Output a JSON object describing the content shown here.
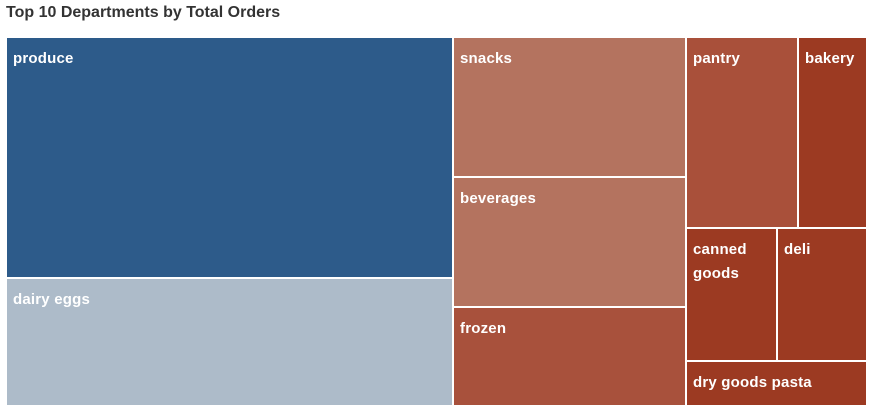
{
  "chart_data": {
    "type": "treemap",
    "title": "Top 10  Departments by Total Orders",
    "items": [
      {
        "name": "produce",
        "label": "produce",
        "color": "#2d5b8a"
      },
      {
        "name": "dairy eggs",
        "label": "dairy eggs",
        "color": "#adbbc9"
      },
      {
        "name": "snacks",
        "label": "snacks",
        "color": "#b4735f"
      },
      {
        "name": "beverages",
        "label": "beverages",
        "color": "#b4735f"
      },
      {
        "name": "frozen",
        "label": "frozen",
        "color": "#a8513c"
      },
      {
        "name": "pantry",
        "label": "pantry",
        "color": "#a9503a"
      },
      {
        "name": "bakery",
        "label": "bakery",
        "color": "#9c3a22"
      },
      {
        "name": "canned goods",
        "label": "canned\ngoods",
        "color": "#9c3a22"
      },
      {
        "name": "deli",
        "label": "deli",
        "color": "#9c3a22"
      },
      {
        "name": "dry goods pasta",
        "label": "dry goods pasta",
        "color": "#9c3a22"
      }
    ]
  }
}
